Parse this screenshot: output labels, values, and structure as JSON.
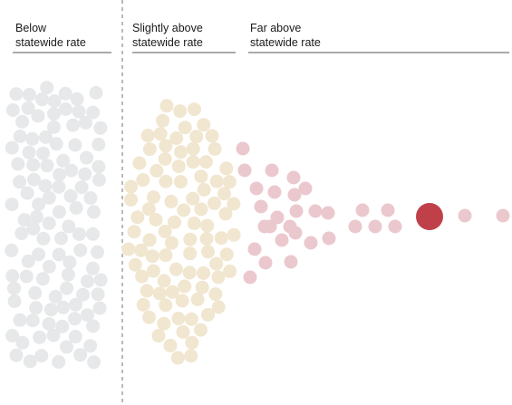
{
  "chart_data": {
    "type": "scatter",
    "title": "",
    "xlabel": "",
    "ylabel": "",
    "groups": [
      {
        "id": "below",
        "label_lines": [
          "Below",
          "statewide rate"
        ],
        "color": "#e6e8e9"
      },
      {
        "id": "slightly_above",
        "label_lines": [
          "Slightly above",
          "statewide rate"
        ],
        "color": "#f1e6cf"
      },
      {
        "id": "far_above",
        "label_lines": [
          "Far above",
          "statewide rate"
        ],
        "color": "#ebc8ce"
      }
    ],
    "highlight": {
      "group": "far_above",
      "color": "#c0404a",
      "description": "largest value in the far-above group"
    },
    "divider_style": "dashed",
    "point_counts": {
      "below": 110,
      "slightly_above": 95,
      "far_above": 32
    }
  }
}
